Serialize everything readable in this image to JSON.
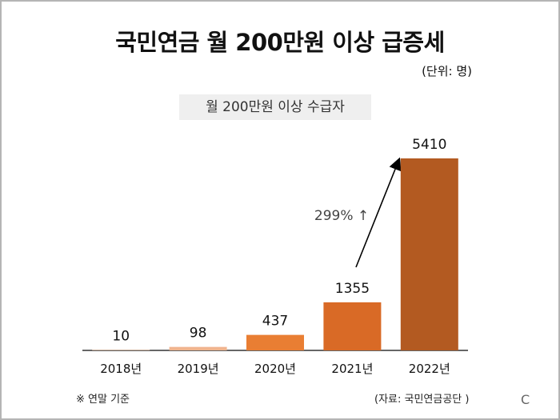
{
  "chart_data": {
    "type": "bar",
    "title": "국민연금 월 200만원 이상 급증세",
    "unit": "(단위: 명)",
    "subtitle": "월 200만원 이상 수급자",
    "categories": [
      "2018년",
      "2019년",
      "2020년",
      "2021년",
      "2022년"
    ],
    "values": [
      10,
      98,
      437,
      1355,
      5410
    ],
    "bar_colors": [
      "#f2c7a4",
      "#f0b48e",
      "#e97e33",
      "#d96a26",
      "#b35a21"
    ],
    "annotation": "299% ↑",
    "ylim": [
      0,
      5410
    ],
    "grid": false,
    "legend": "none"
  },
  "footnote": "※ 연말 기준",
  "source": "(자료: 국민연금공단 )",
  "corner_mark": "C"
}
